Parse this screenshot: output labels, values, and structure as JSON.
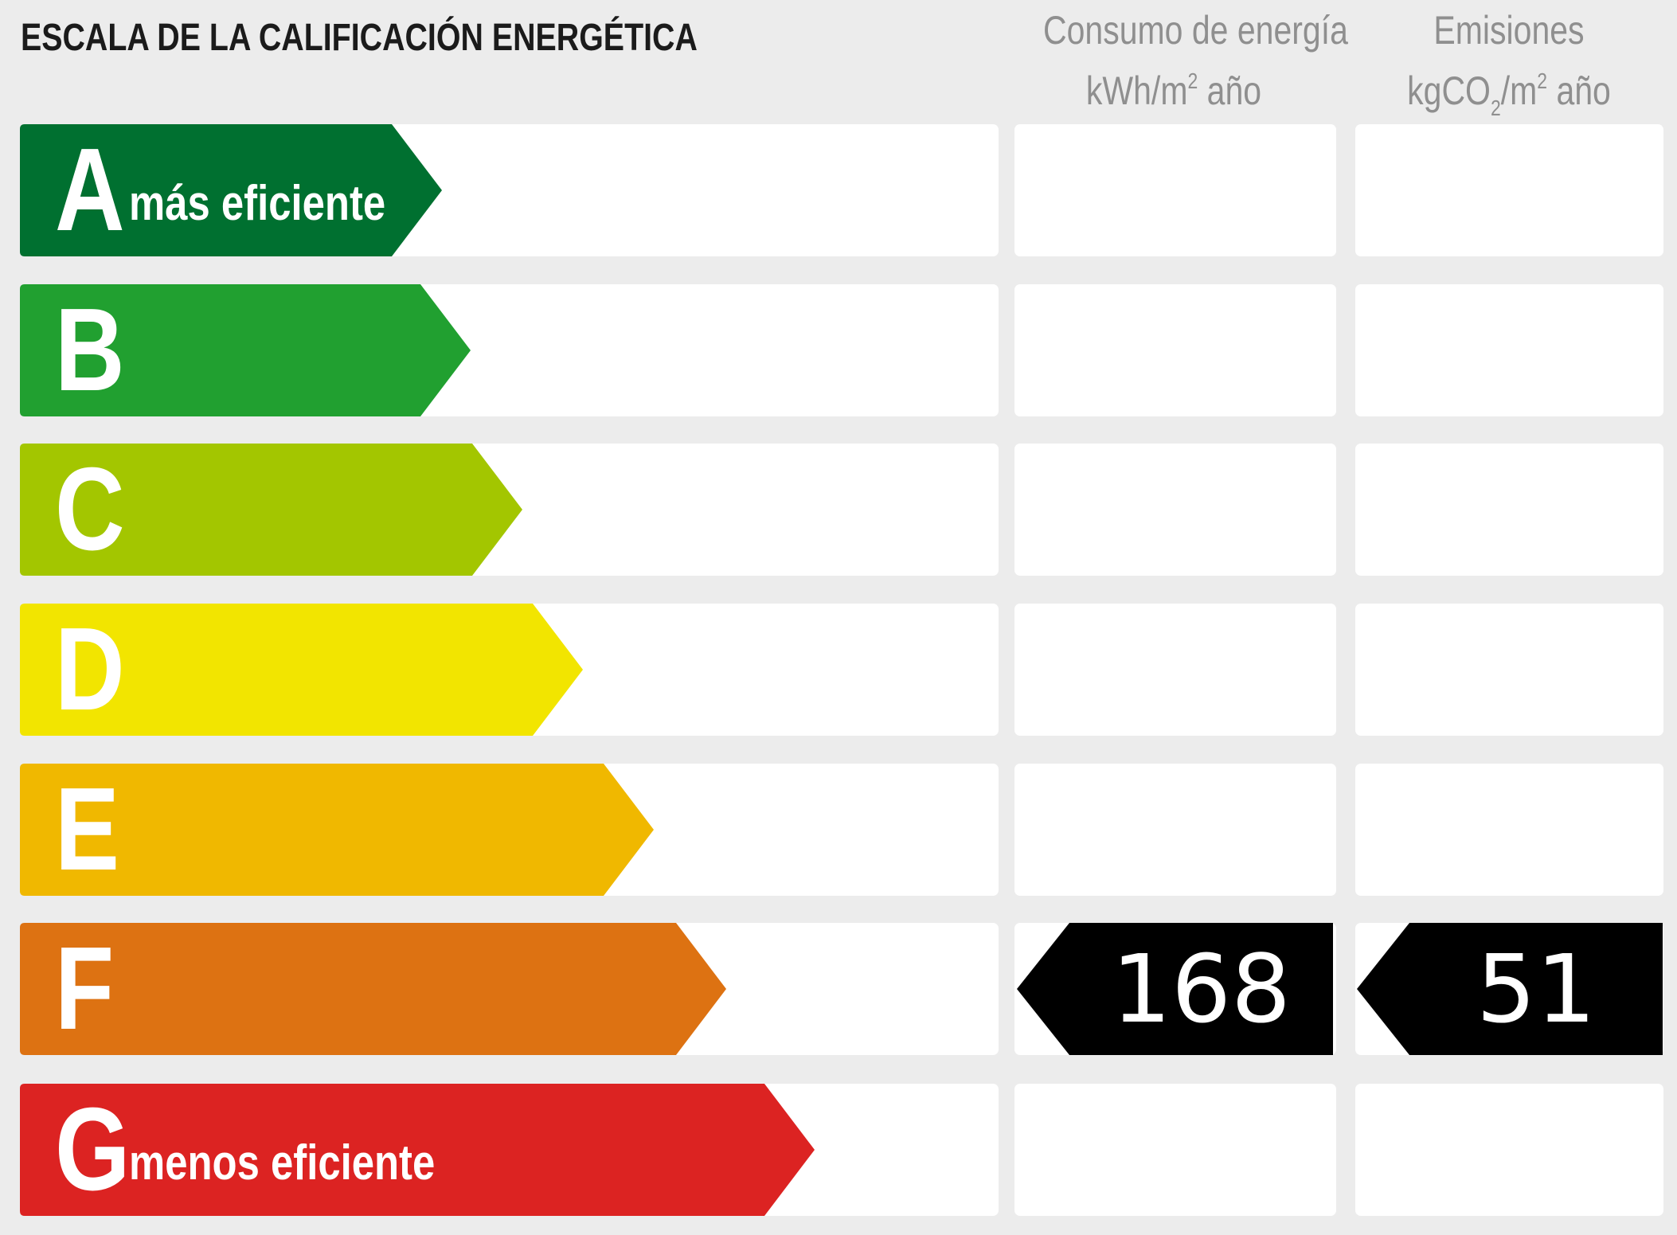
{
  "title": "ESCALA DE LA CALIFICACIÓN ENERGÉTICA",
  "columns": {
    "energy": {
      "line1": "Consumo de energía",
      "unit_pre": "kWh/m",
      "unit_sup": "2",
      "unit_post": " año"
    },
    "emissions": {
      "line1": "Emisiones",
      "unit_pre": "kgCO",
      "unit_sub": "2",
      "unit_mid": "/m",
      "unit_sup": "2",
      "unit_post": " año"
    }
  },
  "ratings": [
    {
      "letter": "A",
      "label": "más eficiente",
      "color": "#007030"
    },
    {
      "letter": "B",
      "label": "",
      "color": "#21a030"
    },
    {
      "letter": "C",
      "label": "",
      "color": "#a3c600"
    },
    {
      "letter": "D",
      "label": "",
      "color": "#f2e500"
    },
    {
      "letter": "E",
      "label": "",
      "color": "#f0b800"
    },
    {
      "letter": "F",
      "label": "",
      "color": "#dd7212"
    },
    {
      "letter": "G",
      "label": "menos eficiente",
      "color": "#dc2322"
    }
  ],
  "result": {
    "rating": "F",
    "energy_value": "168",
    "emissions_value": "51",
    "badge_color": "#000000"
  }
}
